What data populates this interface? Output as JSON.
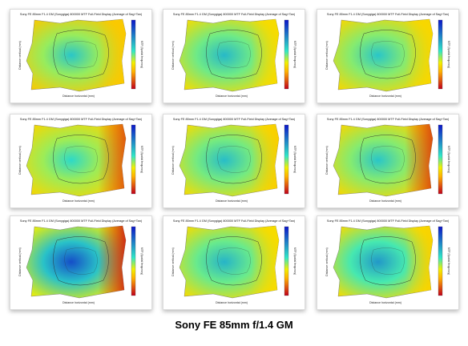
{
  "caption": "Sony FE 85mm f/1.4 GM",
  "colors": {
    "low": "#c0001a",
    "mid_low": "#ffb000",
    "mid": "#f2f000",
    "mid_high": "#2fe7c8",
    "high": "#0c16c8"
  },
  "chart_data": [
    {
      "type": "heatmap",
      "title": "Sony FE 85mm F1.4 GM (Sonygiga) 800000 MTF Full-Field Display (Average of Sag+Tan)",
      "xlabel": "Distance horizontal (mm)",
      "ylabel": "Distance vertical (mm)",
      "colorbar_label": "MTF (Spatial frequency)",
      "center_value": 0.62,
      "edge_value": 0.3,
      "right_edge_value": 0.3
    },
    {
      "type": "heatmap",
      "title": "Sony FE 85mm F1.4 GM (Sonygiga) 800000 MTF Full-Field Display (Average of Sag+Tan)",
      "xlabel": "Distance horizontal (mm)",
      "ylabel": "Distance vertical (mm)",
      "colorbar_label": "MTF (Spatial frequency)",
      "center_value": 0.65,
      "edge_value": 0.34,
      "right_edge_value": 0.34
    },
    {
      "type": "heatmap",
      "title": "Sony FE 85mm F1.4 GM (Sonygiga) 800000 MTF Full-Field Display (Average of Sag+Tan)",
      "xlabel": "Distance horizontal (mm)",
      "ylabel": "Distance vertical (mm)",
      "colorbar_label": "MTF (Spatial frequency)",
      "center_value": 0.62,
      "edge_value": 0.33,
      "right_edge_value": 0.33
    },
    {
      "type": "heatmap",
      "title": "Sony FE 85mm F1.4 GM (Sonygiga) 800000 MTF Full-Field Display (Average of Sag+Tan)",
      "xlabel": "Distance horizontal (mm)",
      "ylabel": "Distance vertical (mm)",
      "colorbar_label": "MTF (Spatial frequency)",
      "center_value": 0.58,
      "edge_value": 0.33,
      "right_edge_value": 0.12
    },
    {
      "type": "heatmap",
      "title": "Sony FE 85mm F1.4 GM (Sonygiga) 800000 MTF Full-Field Display (Average of Sag+Tan)",
      "xlabel": "Distance horizontal (mm)",
      "ylabel": "Distance vertical (mm)",
      "colorbar_label": "MTF (Spatial frequency)",
      "center_value": 0.64,
      "edge_value": 0.34,
      "right_edge_value": 0.31
    },
    {
      "type": "heatmap",
      "title": "Sony FE 85mm F1.4 GM (Sonygiga) 800000 MTF Full-Field Display (Average of Sag+Tan)",
      "xlabel": "Distance horizontal (mm)",
      "ylabel": "Distance vertical (mm)",
      "colorbar_label": "MTF (Spatial frequency)",
      "center_value": 0.62,
      "edge_value": 0.33,
      "right_edge_value": 0.1
    },
    {
      "type": "heatmap",
      "title": "Sony FE 85mm F1.4 GM (Sonygiga) 800000 MTF Full-Field Display (Average of Sag+Tan)",
      "xlabel": "Distance horizontal (mm)",
      "ylabel": "Distance vertical (mm)",
      "colorbar_label": "MTF (Spatial frequency)",
      "center_value": 0.88,
      "edge_value": 0.38,
      "right_edge_value": 0.05
    },
    {
      "type": "heatmap",
      "title": "Sony FE 85mm F1.4 GM (Sonygiga) 800000 MTF Full-Field Display (Average of Sag+Tan)",
      "xlabel": "Distance horizontal (mm)",
      "ylabel": "Distance vertical (mm)",
      "colorbar_label": "MTF (Spatial frequency)",
      "center_value": 0.66,
      "edge_value": 0.34,
      "right_edge_value": 0.34
    },
    {
      "type": "heatmap",
      "title": "Sony FE 85mm F1.4 GM (Sonygiga) 800000 MTF Full-Field Display (Average of Sag+Tan)",
      "xlabel": "Distance horizontal (mm)",
      "ylabel": "Distance vertical (mm)",
      "colorbar_label": "MTF (Spatial frequency)",
      "center_value": 0.72,
      "edge_value": 0.34,
      "right_edge_value": 0.32
    }
  ]
}
